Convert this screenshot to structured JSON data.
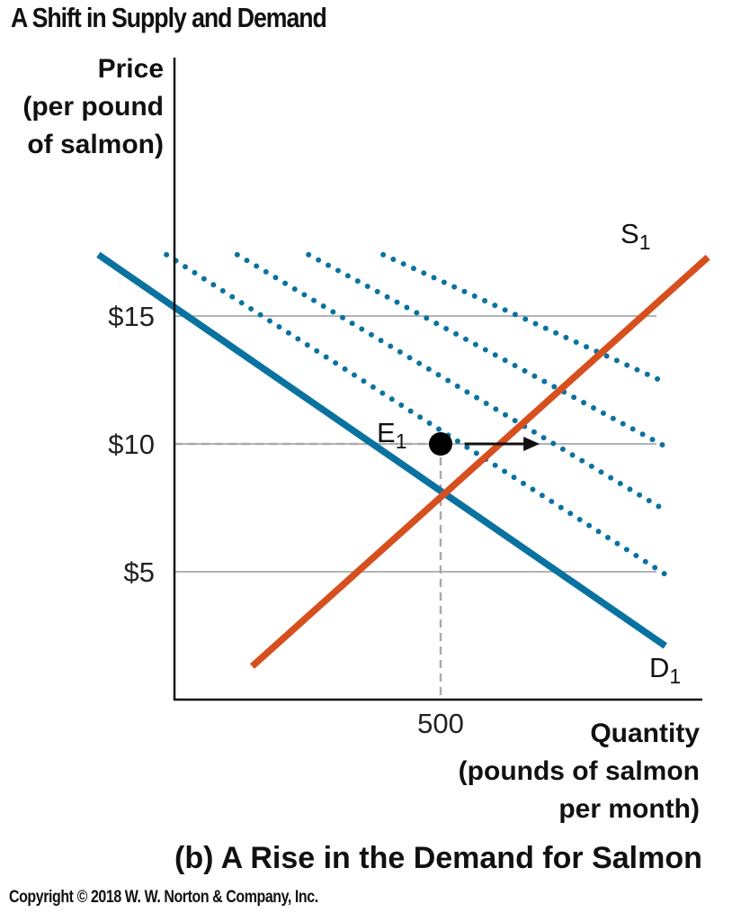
{
  "figure_title": "A Shift in Supply and Demand",
  "panel_title": "(b) A Rise in the Demand for Salmon",
  "copyright": "Copyright © 2018 W. W. Norton & Company, Inc.",
  "chart_data": {
    "type": "line",
    "ylabel": [
      "Price",
      "(per pound",
      "of salmon)"
    ],
    "xlabel": [
      "Quantity",
      "(pounds of salmon",
      "per month)"
    ],
    "ylim": [
      0,
      25
    ],
    "xlim": [
      0,
      1000
    ],
    "y_ticks": [
      {
        "value": 5,
        "label": "$5"
      },
      {
        "value": 10,
        "label": "$10"
      },
      {
        "value": 15,
        "label": "$15"
      }
    ],
    "x_ticks": [
      {
        "value": 500,
        "label": "500"
      }
    ],
    "grid": "horizontal at tick values",
    "colors": {
      "demand": "#0a72a0",
      "supply": "#d64f1e",
      "gridline": "#b3b3b3",
      "guide": "#aaaaaa",
      "point": "#000000"
    },
    "series": [
      {
        "name": "D",
        "subscript": "1",
        "style": "solid",
        "color": "#0a72a0",
        "points": [
          [
            -143,
            17.4
          ],
          [
            922,
            2.1
          ]
        ]
      },
      {
        "name": "S",
        "subscript": "1",
        "style": "solid",
        "color": "#d64f1e",
        "points": [
          [
            146,
            1.3
          ],
          [
            1002,
            17.3
          ]
        ]
      }
    ],
    "shifted_demand_curves": [
      {
        "style": "dotted",
        "color": "#0a72a0",
        "points": [
          [
            -15,
            17.4
          ],
          [
            922,
            4.9
          ]
        ]
      },
      {
        "style": "dotted",
        "color": "#0a72a0",
        "points": [
          [
            118,
            17.4
          ],
          [
            922,
            7.4
          ]
        ]
      },
      {
        "style": "dotted",
        "color": "#0a72a0",
        "points": [
          [
            252,
            17.4
          ],
          [
            922,
            9.9
          ]
        ]
      },
      {
        "style": "dotted",
        "color": "#0a72a0",
        "points": [
          [
            392,
            17.4
          ],
          [
            922,
            12.4
          ]
        ]
      }
    ],
    "equilibrium": {
      "name": "E",
      "subscript": "1",
      "x": 500,
      "y": 10
    },
    "arrow": {
      "from": [
        545,
        10
      ],
      "to": [
        686,
        10
      ],
      "meaning": "demand shifts right"
    }
  }
}
